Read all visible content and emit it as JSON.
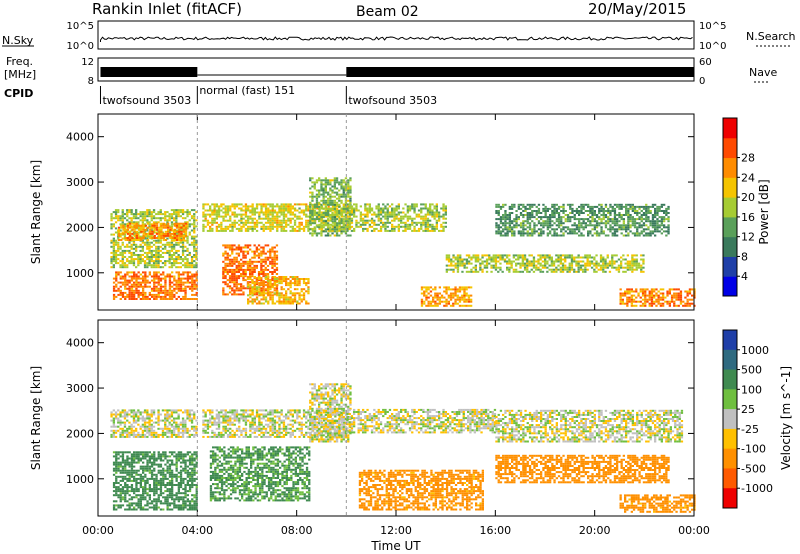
{
  "header": {
    "station": "Rankin Inlet (fitACF)",
    "beam": "Beam 02",
    "date": "20/May/2015"
  },
  "status_panels": {
    "sky_label": "N.Sky",
    "sky_ticks": [
      "10^5",
      "10^0"
    ],
    "search_label": "N.Search",
    "search_ticks": [
      "10^5",
      "10^0"
    ],
    "freq_label_top": "Freq.",
    "freq_label_unit": "[MHz]",
    "freq_ticks": [
      "12",
      "8"
    ],
    "nave_label": "Nave",
    "nave_ticks": [
      "60",
      "0"
    ],
    "cpid_label": "CPID"
  },
  "cpid_segments": [
    {
      "start_hour": 0.1,
      "end_hour": 4.0,
      "label": "twofsound 3503"
    },
    {
      "start_hour": 4.0,
      "end_hour": 10.0,
      "label": "normal (fast) 151"
    },
    {
      "start_hour": 10.0,
      "end_hour": 24.0,
      "label": "twofsound 3503"
    }
  ],
  "colors": {
    "power_scale": [
      "#0000e6",
      "#1f3fa8",
      "#3a7a5c",
      "#5aa05a",
      "#a6cc33",
      "#f5c400",
      "#ff8c00",
      "#ff4a00",
      "#ee0000"
    ],
    "velocity_scale": [
      "#1f3fa8",
      "#2f6a80",
      "#3f8a50",
      "#6fbf3f",
      "#c0c0c0",
      "#ffc000",
      "#ff9000",
      "#ff5a00",
      "#ee0000"
    ]
  },
  "chart_data": [
    {
      "type": "heatmap",
      "title": "Power",
      "xlabel": "",
      "ylabel": "Slant Range [km]",
      "xlim": [
        0,
        24
      ],
      "ylim": [
        180,
        4500
      ],
      "x_tick_labels": [
        "00:00",
        "04:00",
        "08:00",
        "12:00",
        "16:00",
        "20:00",
        "00:00"
      ],
      "y_ticks": [
        1000,
        2000,
        3000,
        4000
      ],
      "colorbar": {
        "label": "Power [dB]",
        "ticks": [
          4,
          8,
          12,
          16,
          20,
          24,
          28
        ],
        "range": [
          0,
          30
        ]
      },
      "regions": [
        {
          "t": [
            0.5,
            4.0
          ],
          "r": [
            1100,
            2400
          ],
          "v": 15
        },
        {
          "t": [
            0.6,
            4.0
          ],
          "r": [
            400,
            1000
          ],
          "v": 24
        },
        {
          "t": [
            0.8,
            3.5
          ],
          "r": [
            1700,
            2100
          ],
          "v": 22
        },
        {
          "t": [
            4.2,
            10.0
          ],
          "r": [
            1900,
            2500
          ],
          "v": 17
        },
        {
          "t": [
            5.0,
            7.2
          ],
          "r": [
            500,
            1600
          ],
          "v": 24
        },
        {
          "t": [
            6.0,
            8.5
          ],
          "r": [
            300,
            900
          ],
          "v": 20
        },
        {
          "t": [
            8.5,
            10.2
          ],
          "r": [
            1800,
            3100
          ],
          "v": 13
        },
        {
          "t": [
            10.0,
            14.0
          ],
          "r": [
            1900,
            2500
          ],
          "v": 15
        },
        {
          "t": [
            13.0,
            15.0
          ],
          "r": [
            250,
            700
          ],
          "v": 21
        },
        {
          "t": [
            14.0,
            22.0
          ],
          "r": [
            1000,
            1400
          ],
          "v": 15
        },
        {
          "t": [
            16.0,
            23.0
          ],
          "r": [
            1800,
            2500
          ],
          "v": 10
        },
        {
          "t": [
            21.0,
            24.0
          ],
          "r": [
            250,
            650
          ],
          "v": 23
        }
      ]
    },
    {
      "type": "heatmap",
      "title": "Velocity",
      "xlabel": "Time UT",
      "ylabel": "Slant Range [km]",
      "xlim": [
        0,
        24
      ],
      "ylim": [
        180,
        4500
      ],
      "x_tick_labels": [
        "00:00",
        "04:00",
        "08:00",
        "12:00",
        "16:00",
        "20:00",
        "00:00"
      ],
      "y_ticks": [
        1000,
        2000,
        3000,
        4000
      ],
      "colorbar": {
        "label": "Velocity [m s^-1]",
        "ticks": [
          "1000",
          "500",
          "100",
          "25",
          "-25",
          "-100",
          "-500",
          "-1000"
        ]
      },
      "regions": [
        {
          "t": [
            0.5,
            4.0
          ],
          "r": [
            1900,
            2500
          ],
          "v": 0
        },
        {
          "t": [
            0.6,
            4.0
          ],
          "r": [
            300,
            1600
          ],
          "v": 150
        },
        {
          "t": [
            4.2,
            10.0
          ],
          "r": [
            1900,
            2500
          ],
          "v": 0
        },
        {
          "t": [
            4.5,
            8.5
          ],
          "r": [
            500,
            1700
          ],
          "v": 120
        },
        {
          "t": [
            8.5,
            10.2
          ],
          "r": [
            1800,
            3100
          ],
          "v": 0
        },
        {
          "t": [
            10.0,
            16.0
          ],
          "r": [
            2000,
            2500
          ],
          "v": 0
        },
        {
          "t": [
            10.5,
            15.5
          ],
          "r": [
            300,
            1200
          ],
          "v": -150
        },
        {
          "t": [
            16.0,
            23.0
          ],
          "r": [
            900,
            1500
          ],
          "v": -400
        },
        {
          "t": [
            16.0,
            23.5
          ],
          "r": [
            1800,
            2500
          ],
          "v": 0
        },
        {
          "t": [
            21.0,
            24.0
          ],
          "r": [
            250,
            650
          ],
          "v": -150
        }
      ]
    }
  ]
}
